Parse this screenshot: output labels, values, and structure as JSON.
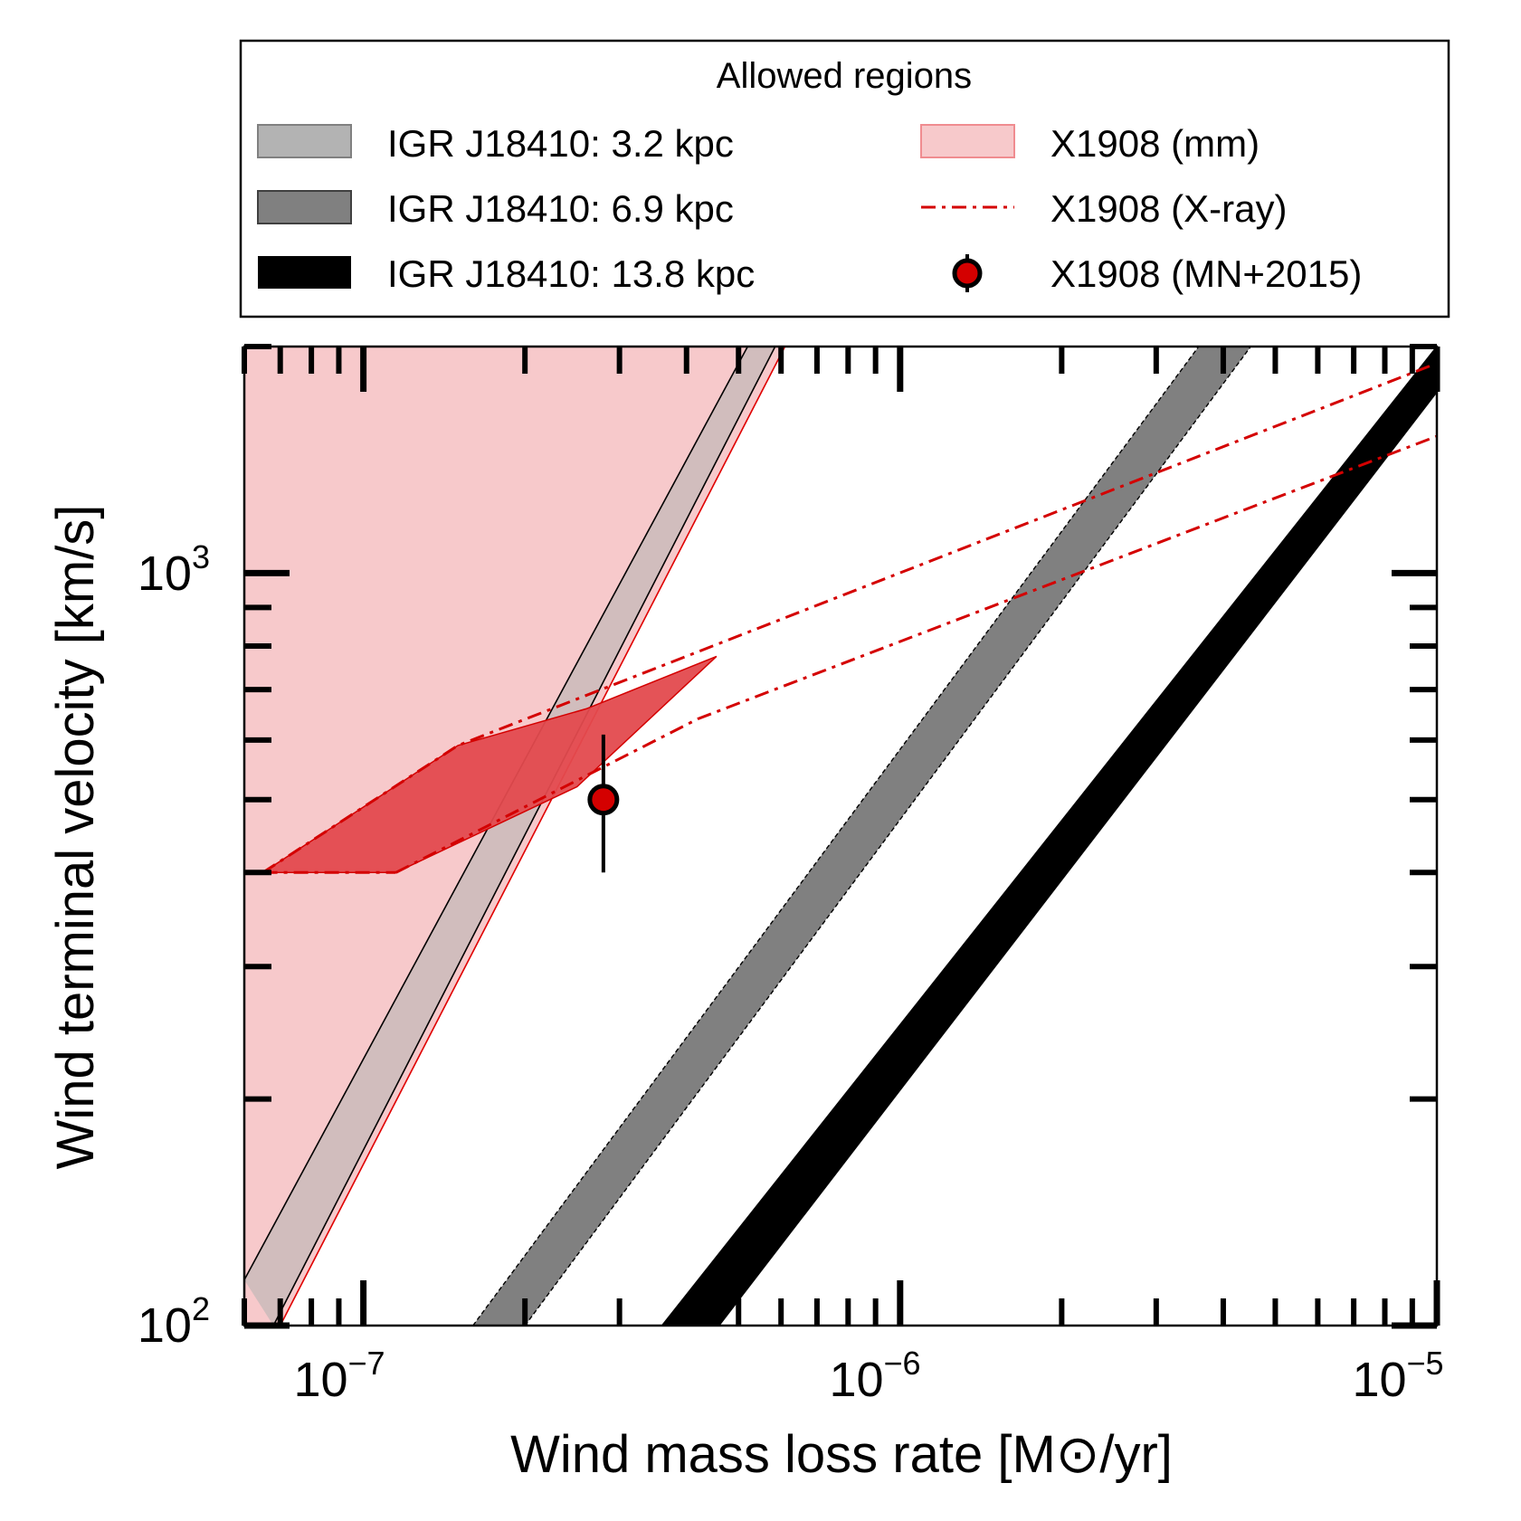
{
  "chart_data": {
    "type": "area",
    "xlabel": "Wind mass loss rate [M⊙/yr]",
    "ylabel": "Wind terminal velocity [km/s]",
    "xscale": "log",
    "yscale": "log",
    "xlim": [
      6e-08,
      1e-05
    ],
    "ylim": [
      100,
      2000
    ],
    "xticks": [
      {
        "value": 1e-07,
        "base": "10",
        "exp": "−7"
      },
      {
        "value": 1e-06,
        "base": "10",
        "exp": "−6"
      },
      {
        "value": 1e-05,
        "base": "10",
        "exp": "−5"
      }
    ],
    "yticks": [
      {
        "value": 100,
        "base": "10",
        "exp": "2"
      },
      {
        "value": 1000,
        "base": "10",
        "exp": "3"
      }
    ],
    "legend": {
      "title": "Allowed regions",
      "placement": "above plot",
      "entries": [
        {
          "label": "IGR J18410: 3.2 kpc",
          "kind": "patch",
          "fill": "#b3b3b3",
          "edge": "#808080"
        },
        {
          "label": "IGR J18410: 6.9 kpc",
          "kind": "patch",
          "fill": "#808080",
          "edge": "#404040"
        },
        {
          "label": "IGR J18410: 13.8 kpc",
          "kind": "patch",
          "fill": "#000000",
          "edge": "#000000"
        },
        {
          "label": "X1908 (mm)",
          "kind": "patch",
          "fill": "#f7c9cb",
          "edge": "#f08c90"
        },
        {
          "label": "X1908 (X-ray)",
          "kind": "dashdot",
          "color": "#d40000"
        },
        {
          "label": "X1908 (MN+2015)",
          "kind": "errorpoint",
          "color": "#d40000"
        }
      ]
    },
    "series": [
      {
        "name": "IGR J18410: 3.2 kpc",
        "kind": "band",
        "fill": "#b3b3b3",
        "alpha": 1.0,
        "edge": "#000000",
        "lower": [
          [
            6.8e-08,
            100
          ],
          [
            5.85e-07,
            2000
          ]
        ],
        "upper": [
          [
            6e-08,
            115
          ],
          [
            5.2e-07,
            2000
          ]
        ]
      },
      {
        "name": "IGR J18410: 6.9 kpc",
        "kind": "band",
        "fill": "#808080",
        "edge": "#000000",
        "lower": [
          [
            2e-07,
            100
          ],
          [
            4.5e-06,
            2000
          ]
        ],
        "upper": [
          [
            1.6e-07,
            100
          ],
          [
            3.6e-06,
            2000
          ]
        ]
      },
      {
        "name": "IGR J18410: 13.8 kpc",
        "kind": "band",
        "fill": "#000000",
        "edge": "#000000",
        "lower": [
          [
            4.6e-07,
            100
          ],
          [
            1e-05,
            1740
          ]
        ],
        "upper": [
          [
            3.6e-07,
            100
          ],
          [
            1e-05,
            2000
          ]
        ]
      },
      {
        "name": "X1908 (mm)",
        "kind": "region",
        "fill": "#f7c9cb",
        "edge": "#e00000",
        "boundary": [
          [
            6e-08,
            2000
          ],
          [
            6.1e-07,
            2000
          ],
          [
            7e-08,
            100
          ],
          [
            6e-08,
            100
          ]
        ]
      },
      {
        "name": "X1908 (X-ray)",
        "kind": "lines",
        "color": "#d40000",
        "lines": [
          [
            [
              6.5e-08,
              400
            ],
            [
              1.5e-07,
              590
            ],
            [
              1e-05,
              1900
            ]
          ],
          [
            [
              1.15e-07,
              400
            ],
            [
              4.2e-07,
              640
            ],
            [
              1e-05,
              1520
            ]
          ]
        ],
        "overlap_fill": "#e34a4e",
        "overlap_boundary": [
          [
            6.5e-08,
            400
          ],
          [
            1.15e-07,
            400
          ],
          [
            2.5e-07,
            520
          ],
          [
            4.55e-07,
            775
          ],
          [
            2.6e-07,
            660
          ],
          [
            1.5e-07,
            590
          ]
        ]
      },
      {
        "name": "X1908 (MN+2015)",
        "kind": "errorpoint",
        "color": "#d40000",
        "x": 2.8e-07,
        "y": 500,
        "yerr_low": 100,
        "yerr_high": 110
      }
    ]
  }
}
